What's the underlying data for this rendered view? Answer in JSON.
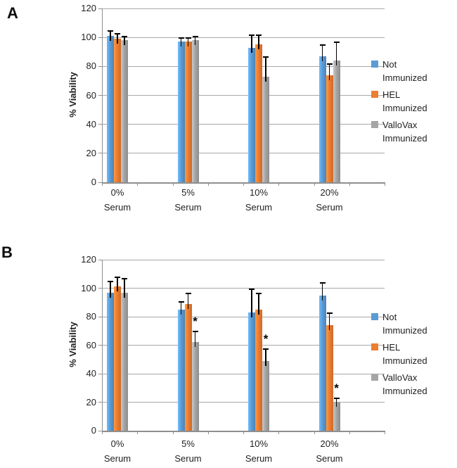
{
  "panels": [
    {
      "label": "A"
    },
    {
      "label": "B"
    }
  ],
  "colors": {
    "not_immunized": "#5B9BD5",
    "hel_immunized": "#ED7D31",
    "vallovax_immunized": "#A5A5A5",
    "error_bar": "#000000",
    "gridline": "#a8a8a8"
  },
  "chart_data": [
    {
      "panel": "A",
      "type": "bar",
      "title": "",
      "ylabel": "% Viability",
      "xlabel": "",
      "ylim": [
        0,
        120
      ],
      "ytick_step": 20,
      "grid": true,
      "legend_position": "right",
      "categories": [
        [
          "0%",
          "Serum"
        ],
        [
          "5%",
          "Serum"
        ],
        [
          "10%",
          "Serum"
        ],
        [
          "20%",
          "Serum"
        ]
      ],
      "series": [
        {
          "name": "Not Immunized",
          "color": "#5B9BD5",
          "values": [
            101,
            97,
            93,
            87
          ],
          "errors": [
            4,
            3,
            9,
            8
          ]
        },
        {
          "name": "HEL Immunized",
          "color": "#ED7D31",
          "values": [
            99,
            97,
            95,
            74
          ],
          "errors": [
            4,
            3,
            7,
            8
          ]
        },
        {
          "name": "ValloVax Immunized",
          "color": "#A5A5A5",
          "values": [
            98,
            98,
            73,
            84
          ],
          "errors": [
            3,
            3,
            14,
            13
          ]
        }
      ],
      "significance": []
    },
    {
      "panel": "B",
      "type": "bar",
      "title": "",
      "ylabel": "% Viability",
      "xlabel": "",
      "ylim": [
        0,
        120
      ],
      "ytick_step": 20,
      "grid": true,
      "legend_position": "right",
      "categories": [
        [
          "0%",
          "Serum"
        ],
        [
          "5%",
          "Serum"
        ],
        [
          "10%",
          "Serum"
        ],
        [
          "20%",
          "Serum"
        ]
      ],
      "series": [
        {
          "name": "Not Immunized",
          "color": "#5B9BD5",
          "values": [
            97,
            85,
            83,
            95
          ],
          "errors": [
            8,
            6,
            17,
            9
          ]
        },
        {
          "name": "HEL Immunized",
          "color": "#ED7D31",
          "values": [
            101,
            89,
            85,
            74
          ],
          "errors": [
            7,
            8,
            12,
            9
          ]
        },
        {
          "name": "ValloVax Immunized",
          "color": "#A5A5A5",
          "values": [
            97,
            62,
            49,
            20
          ],
          "errors": [
            10,
            8,
            9,
            3
          ]
        }
      ],
      "significance": [
        {
          "category": 1,
          "series": 2,
          "marker": "*"
        },
        {
          "category": 2,
          "series": 2,
          "marker": "*"
        },
        {
          "category": 3,
          "series": 2,
          "marker": "*"
        }
      ]
    }
  ]
}
